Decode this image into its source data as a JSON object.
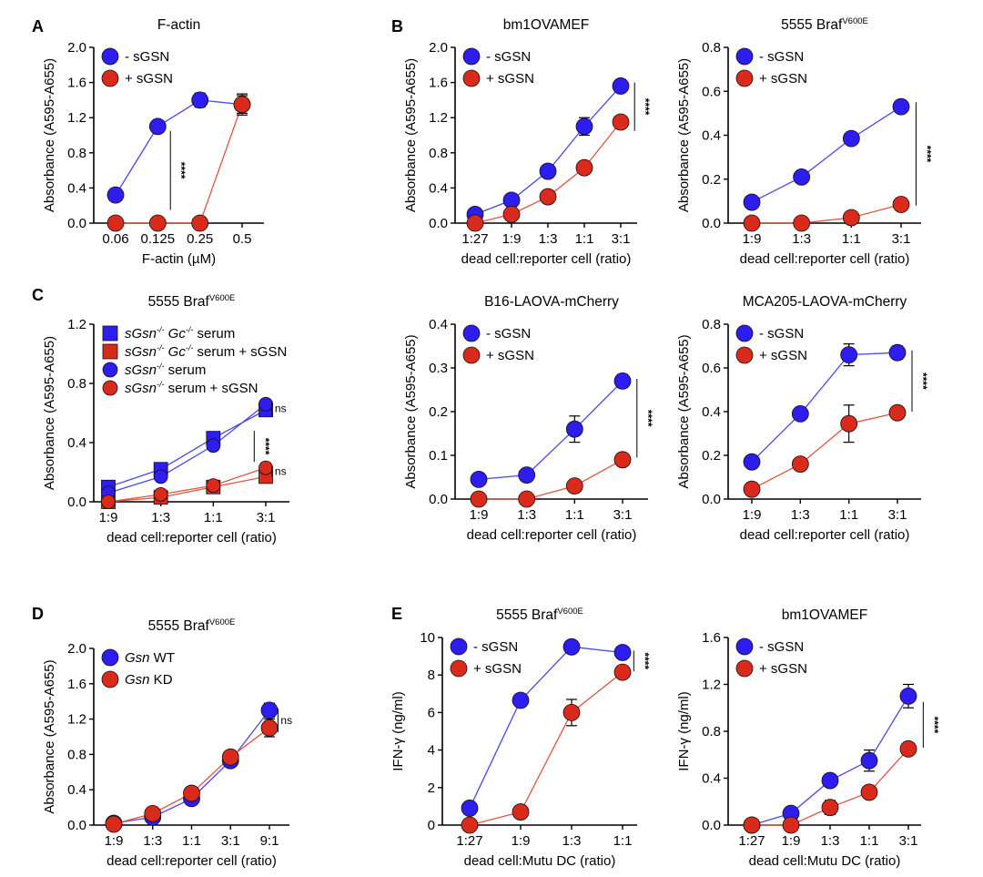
{
  "panel_letters": [
    "A",
    "B",
    "C",
    "D",
    "E"
  ],
  "colors": {
    "blue": "#2d1df0",
    "red": "#d92a1c",
    "blue_line": "#4a48e6",
    "red_line": "#e0553f"
  },
  "chart_data": [
    {
      "id": "A1",
      "type": "line",
      "letter": "A",
      "title": "F-actin",
      "title_sup": "",
      "xlabel": "F-actin (µM)",
      "ylabel": "Absorbance (A595-A655)",
      "categories": [
        "0.06",
        "0.125",
        "0.25",
        "0.5"
      ],
      "yticks": [
        "0.0",
        "0.4",
        "0.8",
        "1.2",
        "1.6",
        "2.0"
      ],
      "ylim": [
        0,
        2.0
      ],
      "series": [
        {
          "name": "- sGSN",
          "color": "blue",
          "marker": "circle",
          "values": [
            0.32,
            1.1,
            1.4,
            1.35
          ],
          "err": [
            0.02,
            0.03,
            0.08,
            0.12
          ]
        },
        {
          "name": "+ sGSN",
          "color": "red",
          "marker": "circle",
          "values": [
            0.0,
            0.0,
            0.0,
            1.35
          ],
          "err": [
            0,
            0,
            0,
            0.1
          ]
        }
      ],
      "legend": "top-left",
      "annotations": [
        {
          "text": "****",
          "x_cat": 1.3,
          "y_from": 0.15,
          "y_to": 1.05,
          "label_side": "right"
        }
      ]
    },
    {
      "id": "B1",
      "type": "line",
      "letter": "B",
      "title": "bm1OVAMEF",
      "title_sup": "",
      "xlabel": "dead cell:reporter cell (ratio)",
      "ylabel": "Absorbance (A595-A655)",
      "categories": [
        "1:27",
        "1:9",
        "1:3",
        "1:1",
        "3:1"
      ],
      "yticks": [
        "0.0",
        "0.4",
        "0.8",
        "1.2",
        "1.6",
        "2.0"
      ],
      "ylim": [
        0,
        2.0
      ],
      "series": [
        {
          "name": "- sGSN",
          "color": "blue",
          "marker": "circle",
          "values": [
            0.1,
            0.26,
            0.59,
            1.1,
            1.56
          ],
          "err": [
            0.01,
            0.02,
            0.03,
            0.1,
            0.05
          ]
        },
        {
          "name": "+ sGSN",
          "color": "red",
          "marker": "circle",
          "values": [
            0.0,
            0.1,
            0.3,
            0.63,
            1.15
          ],
          "err": [
            0.01,
            0.02,
            0.02,
            0.02,
            0.05
          ]
        }
      ],
      "legend": "top-left",
      "annotations": [
        {
          "text": "****",
          "x_cat": 4.38,
          "y_from": 1.05,
          "y_to": 1.6,
          "label_side": "right"
        }
      ]
    },
    {
      "id": "B2",
      "type": "line",
      "letter": "",
      "title": "5555 Braf",
      "title_sup": "V600E",
      "xlabel": "dead cell:reporter cell (ratio)",
      "ylabel": "Absorbance (A595-A655)",
      "categories": [
        "1:9",
        "1:3",
        "1:1",
        "3:1"
      ],
      "yticks": [
        "0.0",
        "0.2",
        "0.4",
        "0.6",
        "0.8"
      ],
      "ylim": [
        0,
        0.8
      ],
      "series": [
        {
          "name": "- sGSN",
          "color": "blue",
          "marker": "circle",
          "values": [
            0.095,
            0.21,
            0.385,
            0.53
          ],
          "err": [
            0.005,
            0.015,
            0.01,
            0.025
          ]
        },
        {
          "name": "+ sGSN",
          "color": "red",
          "marker": "circle",
          "values": [
            0.0,
            0.0,
            0.025,
            0.085
          ],
          "err": [
            0,
            0,
            0.015,
            0.02
          ]
        }
      ],
      "legend": "top-left",
      "annotations": [
        {
          "text": "****",
          "x_cat": 3.3,
          "y_from": 0.08,
          "y_to": 0.55,
          "label_side": "right"
        }
      ]
    },
    {
      "id": "C1",
      "type": "line",
      "letter": "C",
      "title": "5555 Braf",
      "title_sup": "V600E",
      "xlabel": "dead cell:reporter cell (ratio)",
      "ylabel": "Absorbance (A595-A655)",
      "categories": [
        "1:9",
        "1:3",
        "1:1",
        "3:1"
      ],
      "yticks": [
        "0.0",
        "0.4",
        "0.8",
        "1.2"
      ],
      "ylim": [
        0,
        1.2
      ],
      "series": [
        {
          "name": "sGsn-/- Gc-/- serum",
          "color": "blue",
          "marker": "square",
          "values": [
            0.1,
            0.22,
            0.43,
            0.62
          ],
          "err": [
            0.01,
            0.02,
            0.02,
            0.03
          ]
        },
        {
          "name": "sGsn-/- Gc-/- serum + sGSN",
          "color": "red",
          "marker": "square",
          "values": [
            0.0,
            0.03,
            0.1,
            0.17
          ],
          "err": [
            0.01,
            0.01,
            0.01,
            0.02
          ]
        },
        {
          "name": "sGsn-/- serum",
          "color": "blue",
          "marker": "circle",
          "values": [
            0.06,
            0.17,
            0.38,
            0.66
          ],
          "err": [
            0.01,
            0.02,
            0.02,
            0.03
          ]
        },
        {
          "name": "sGsn-/- serum + sGSN",
          "color": "red",
          "marker": "circle",
          "values": [
            0.0,
            0.05,
            0.11,
            0.23
          ],
          "err": [
            0.01,
            0.01,
            0.01,
            0.02
          ]
        }
      ],
      "legend": "top-left",
      "legend_items": [
        {
          "italic": "sGsn",
          "sup1": "-/-",
          "italic2": " Gc",
          "sup2": "-/-",
          "rest": " serum",
          "marker": "square",
          "color": "blue"
        },
        {
          "italic": "sGsn",
          "sup1": "-/-",
          "italic2": " Gc",
          "sup2": "-/-",
          "rest": " serum + sGSN",
          "marker": "square",
          "color": "red"
        },
        {
          "italic": "sGsn",
          "sup1": "-/-",
          "italic2": "",
          "sup2": "",
          "rest": " serum",
          "marker": "circle",
          "color": "blue"
        },
        {
          "italic": "sGsn",
          "sup1": "-/-",
          "italic2": "",
          "sup2": "",
          "rest": " serum + sGSN",
          "marker": "circle",
          "color": "red"
        }
      ],
      "annotations": [
        {
          "text": "****",
          "x_cat": 2.78,
          "y_from": 0.27,
          "y_to": 0.48,
          "label_side": "right"
        },
        {
          "text": "ns",
          "x_cat": 3.12,
          "y_from": 0.58,
          "y_to": 0.68,
          "label_side": "right"
        },
        {
          "text": "ns",
          "x_cat": 3.12,
          "y_from": 0.17,
          "y_to": 0.24,
          "label_side": "right"
        }
      ]
    },
    {
      "id": "C2",
      "type": "line",
      "letter": "",
      "title": "B16-LAOVA-mCherry",
      "title_sup": "",
      "xlabel": "dead cell:reporter cell (ratio)",
      "ylabel": "Absorbance (A595-A655)",
      "categories": [
        "1:9",
        "1:3",
        "1:1",
        "3:1"
      ],
      "yticks": [
        "0.0",
        "0.1",
        "0.2",
        "0.3",
        "0.4"
      ],
      "ylim": [
        0,
        0.4
      ],
      "series": [
        {
          "name": "- sGSN",
          "color": "blue",
          "marker": "circle",
          "values": [
            0.045,
            0.055,
            0.16,
            0.27
          ],
          "err": [
            0.005,
            0.005,
            0.03,
            0.015
          ]
        },
        {
          "name": "+ sGSN",
          "color": "red",
          "marker": "circle",
          "values": [
            0.0,
            0.0,
            0.03,
            0.09
          ],
          "err": [
            0,
            0,
            0.01,
            0.005
          ]
        }
      ],
      "legend": "top-left",
      "annotations": [
        {
          "text": "****",
          "x_cat": 3.3,
          "y_from": 0.095,
          "y_to": 0.275,
          "label_side": "right"
        }
      ]
    },
    {
      "id": "C3",
      "type": "line",
      "letter": "",
      "title": "MCA205-LAOVA-mCherry",
      "title_sup": "",
      "xlabel": "dead cell:reporter cell (ratio)",
      "ylabel": "Absorbance (A595-A655)",
      "categories": [
        "1:9",
        "1:3",
        "1:1",
        "3:1"
      ],
      "yticks": [
        "0.0",
        "0.2",
        "0.4",
        "0.6",
        "0.8"
      ],
      "ylim": [
        0,
        0.8
      ],
      "series": [
        {
          "name": "- sGSN",
          "color": "blue",
          "marker": "circle",
          "values": [
            0.17,
            0.39,
            0.66,
            0.67
          ],
          "err": [
            0.01,
            0.02,
            0.05,
            0.03
          ]
        },
        {
          "name": "+ sGSN",
          "color": "red",
          "marker": "circle",
          "values": [
            0.045,
            0.16,
            0.345,
            0.395
          ],
          "err": [
            0.02,
            0.02,
            0.085,
            0.015
          ]
        }
      ],
      "legend": "top-left",
      "annotations": [
        {
          "text": "****",
          "x_cat": 3.3,
          "y_from": 0.4,
          "y_to": 0.68,
          "label_side": "right"
        }
      ]
    },
    {
      "id": "D1",
      "type": "line",
      "letter": "D",
      "title": "5555 Braf",
      "title_sup": "V600E",
      "xlabel": "dead cell:reporter cell (ratio)",
      "ylabel": "Absorbance (A595-A655)",
      "categories": [
        "1:9",
        "1:3",
        "1:1",
        "3:1",
        "9:1"
      ],
      "yticks": [
        "0.0",
        "0.4",
        "0.8",
        "1.2",
        "1.6",
        "2.0"
      ],
      "ylim": [
        0,
        2.0
      ],
      "series": [
        {
          "name": "Gsn WT",
          "color": "blue",
          "marker": "circle",
          "values": [
            0.02,
            0.09,
            0.3,
            0.73,
            1.3
          ],
          "err": [
            0.01,
            0.02,
            0.03,
            0.05,
            0.08
          ]
        },
        {
          "name": "Gsn KD",
          "color": "red",
          "marker": "circle",
          "values": [
            0.01,
            0.13,
            0.36,
            0.77,
            1.1
          ],
          "err": [
            0.01,
            0.02,
            0.03,
            0.04,
            0.1
          ]
        }
      ],
      "legend": "top-left",
      "legend_items": [
        {
          "italic": "Gsn",
          "rest": " WT",
          "marker": "circle",
          "color": "blue"
        },
        {
          "italic": "Gsn",
          "rest": " KD",
          "marker": "circle",
          "color": "red"
        }
      ],
      "annotations": [
        {
          "text": "ns",
          "x_cat": 4.22,
          "y_from": 1.05,
          "y_to": 1.32,
          "label_side": "right"
        }
      ]
    },
    {
      "id": "E1",
      "type": "line",
      "letter": "E",
      "title": "5555 Braf",
      "title_sup": "V600E",
      "xlabel": "dead cell:Mutu DC (ratio)",
      "ylabel": "IFN-γ (ng/ml)",
      "categories": [
        "1:27",
        "1:9",
        "1:3",
        "1:1"
      ],
      "yticks": [
        "0",
        "2",
        "4",
        "6",
        "8",
        "10"
      ],
      "ylim": [
        0,
        10
      ],
      "series": [
        {
          "name": "- sGSN",
          "color": "blue",
          "marker": "circle",
          "values": [
            0.9,
            6.65,
            9.5,
            9.2
          ],
          "err": [
            0.05,
            0.1,
            0.1,
            0.1
          ]
        },
        {
          "name": "+ sGSN",
          "color": "red",
          "marker": "circle",
          "values": [
            0.0,
            0.7,
            6.0,
            8.15
          ],
          "err": [
            0,
            0.1,
            0.7,
            0.25
          ]
        }
      ],
      "legend": "top-left",
      "annotations": [
        {
          "text": "****",
          "x_cat": 3.22,
          "y_from": 8.2,
          "y_to": 9.3,
          "label_side": "right"
        }
      ]
    },
    {
      "id": "E2",
      "type": "line",
      "letter": "",
      "title": "bm1OVAMEF",
      "title_sup": "",
      "xlabel": "dead cell:Mutu DC (ratio)",
      "ylabel": "IFN-γ (ng/ml)",
      "categories": [
        "1:27",
        "1:9",
        "1:3",
        "1:1",
        "3:1"
      ],
      "yticks": [
        "0.0",
        "0.4",
        "0.8",
        "1.2",
        "1.6"
      ],
      "ylim": [
        0,
        1.6
      ],
      "series": [
        {
          "name": "- sGSN",
          "color": "blue",
          "marker": "circle",
          "values": [
            0.0,
            0.1,
            0.38,
            0.55,
            1.1
          ],
          "err": [
            0,
            0.01,
            0.02,
            0.09,
            0.1
          ]
        },
        {
          "name": "+ sGSN",
          "color": "red",
          "marker": "circle",
          "values": [
            0.0,
            0.0,
            0.15,
            0.28,
            0.65
          ],
          "err": [
            0,
            0,
            0.06,
            0.03,
            0.05
          ]
        }
      ],
      "legend": "top-left",
      "annotations": [
        {
          "text": "****",
          "x_cat": 4.38,
          "y_from": 0.66,
          "y_to": 1.05,
          "label_side": "right"
        }
      ]
    }
  ]
}
